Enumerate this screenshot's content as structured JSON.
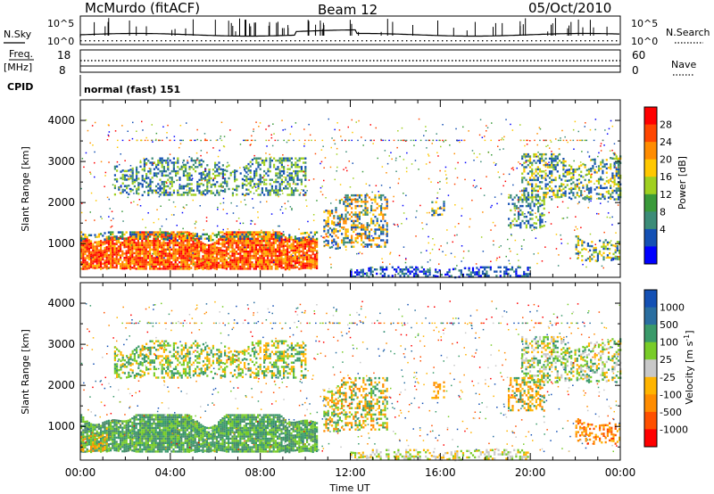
{
  "header": {
    "station": "McMurdo  (fitACF)",
    "beam": "Beam 12",
    "date": "05/Oct/2010"
  },
  "top_panels": {
    "nsky_label": "N.Sky",
    "nsearch_label": "N.Search",
    "noise_ticks": [
      "10^5",
      "10^0"
    ],
    "freq_label": "Freq.",
    "freq_units": "[MHz]",
    "freq_ticks": [
      "18",
      "8"
    ],
    "nave_label": "Nave",
    "nave_ticks": [
      "60",
      "0"
    ],
    "cpid_label": "CPID",
    "cpid_value": "normal (fast) 151"
  },
  "chart_data": [
    {
      "type": "heatmap",
      "title": "",
      "xlabel": "",
      "ylabel": "Slant Range [km]",
      "x_ticks": [
        "00:00",
        "04:00",
        "08:00",
        "12:00",
        "16:00",
        "20:00",
        "00:00"
      ],
      "xlim_hours": [
        0,
        24
      ],
      "ylim_km": [
        180,
        4500
      ],
      "y_ticks": [
        1000,
        2000,
        3000,
        4000
      ],
      "colorbar": {
        "label": "Power [dB]",
        "ticks": [
          "28",
          "24",
          "20",
          "16",
          "12",
          "8",
          "4"
        ],
        "colors": [
          "#ff0000",
          "#ff4600",
          "#ff8c00",
          "#ffc800",
          "#a0d020",
          "#3a9a3a",
          "#3c8c78",
          "#1450b4",
          "#0000ff"
        ]
      },
      "regions": [
        {
          "t0": 0.0,
          "t1": 10.5,
          "r0": 400,
          "r1": 1300,
          "value": "strong",
          "colors": [
            "#ff0000",
            "#ff3c00",
            "#ff7800",
            "#ffb400"
          ]
        },
        {
          "t0": 0.0,
          "t1": 10.5,
          "r0": 1100,
          "r1": 1300,
          "value": "edge",
          "colors": [
            "#3a9a3a",
            "#1450b4",
            "#ffc800"
          ]
        },
        {
          "t0": 10.8,
          "t1": 13.6,
          "r0": 900,
          "r1": 2200,
          "value": "mixed",
          "colors": [
            "#1450b4",
            "#3c8c78",
            "#ffc800",
            "#ff8c00"
          ]
        },
        {
          "t0": 15.6,
          "t1": 16.2,
          "r0": 1700,
          "r1": 2100,
          "value": "weak",
          "colors": [
            "#1450b4",
            "#3c8c78",
            "#ffc800"
          ]
        },
        {
          "t0": 19.6,
          "t1": 24.0,
          "r0": 2100,
          "r1": 3200,
          "value": "mixed",
          "colors": [
            "#1450b4",
            "#3c8c78",
            "#a0d020",
            "#ffc800"
          ]
        },
        {
          "t0": 19.0,
          "t1": 20.6,
          "r0": 1400,
          "r1": 2200,
          "value": "mixed",
          "colors": [
            "#1450b4",
            "#3c8c78",
            "#a0d020"
          ]
        },
        {
          "t0": 22.0,
          "t1": 24.0,
          "r0": 600,
          "r1": 1200,
          "value": "mixed",
          "colors": [
            "#1450b4",
            "#3c8c78",
            "#a0d020",
            "#ffc800"
          ]
        },
        {
          "t0": 1.5,
          "t1": 10.0,
          "r0": 2200,
          "r1": 3100,
          "value": "weak",
          "colors": [
            "#1450b4",
            "#3c8c78",
            "#a0d020"
          ]
        },
        {
          "t0": 12.0,
          "t1": 20.0,
          "r0": 200,
          "r1": 450,
          "value": "weak",
          "colors": [
            "#1450b4",
            "#3c8c78",
            "#0000ff"
          ]
        }
      ]
    },
    {
      "type": "heatmap",
      "title": "",
      "xlabel": "Time UT",
      "ylabel": "Slant Range [km]",
      "x_ticks": [
        "00:00",
        "04:00",
        "08:00",
        "12:00",
        "16:00",
        "20:00",
        "00:00"
      ],
      "xlim_hours": [
        0,
        24
      ],
      "ylim_km": [
        180,
        4500
      ],
      "y_ticks": [
        1000,
        2000,
        3000,
        4000
      ],
      "colorbar": {
        "label": "Velocity [m s^-1]",
        "label_main": "Velocity",
        "label_units": "[m s",
        "label_exp": "-1",
        "label_close": "]",
        "ticks": [
          "1000",
          "500",
          "100",
          "25",
          "-25",
          "-100",
          "-500",
          "-1000"
        ],
        "colors": [
          "#1450b4",
          "#2a6ea0",
          "#3a9a6a",
          "#78cc28",
          "#c8c8c8",
          "#ffb400",
          "#ff8c00",
          "#ff5000",
          "#ff0000"
        ]
      },
      "regions": [
        {
          "t0": 0.0,
          "t1": 10.5,
          "r0": 400,
          "r1": 1300,
          "value": "neg-small",
          "colors": [
            "#3a9a6a",
            "#4a8a6a",
            "#78cc28"
          ]
        },
        {
          "t0": 0.0,
          "t1": 1.2,
          "r0": 400,
          "r1": 1000,
          "value": "pos",
          "colors": [
            "#ffb400",
            "#ff8c00",
            "#78cc28"
          ]
        },
        {
          "t0": 10.8,
          "t1": 13.6,
          "r0": 900,
          "r1": 2200,
          "value": "mixed",
          "colors": [
            "#3a9a6a",
            "#78cc28",
            "#ffb400",
            "#ff8c00"
          ]
        },
        {
          "t0": 15.6,
          "t1": 16.2,
          "r0": 1700,
          "r1": 2100,
          "value": "pos",
          "colors": [
            "#ff8c00",
            "#ffb400"
          ]
        },
        {
          "t0": 19.6,
          "t1": 24.0,
          "r0": 2100,
          "r1": 3200,
          "value": "mixed",
          "colors": [
            "#c8c8c8",
            "#3a9a6a",
            "#78cc28",
            "#ffb400"
          ]
        },
        {
          "t0": 19.0,
          "t1": 20.6,
          "r0": 1400,
          "r1": 2200,
          "value": "mixed",
          "colors": [
            "#ff8c00",
            "#ffb400",
            "#3a9a6a"
          ]
        },
        {
          "t0": 22.0,
          "t1": 24.0,
          "r0": 600,
          "r1": 1200,
          "value": "mixed",
          "colors": [
            "#ff8c00",
            "#ff5000",
            "#ffb400"
          ]
        },
        {
          "t0": 1.5,
          "t1": 10.0,
          "r0": 2200,
          "r1": 3100,
          "value": "mixed",
          "colors": [
            "#3a9a6a",
            "#ffb400",
            "#78cc28"
          ]
        },
        {
          "t0": 12.0,
          "t1": 20.0,
          "r0": 200,
          "r1": 450,
          "value": "small",
          "colors": [
            "#c8c8c8",
            "#78cc28",
            "#ffb400"
          ]
        }
      ]
    }
  ]
}
